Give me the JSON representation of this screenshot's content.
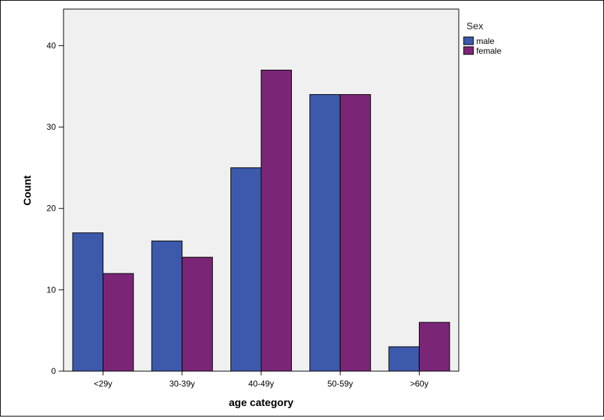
{
  "chart_data": {
    "type": "bar",
    "title": "",
    "xlabel": "age category",
    "ylabel": "Count",
    "categories": [
      "<29y",
      "30-39y",
      "40-49y",
      "50-59y",
      ">60y"
    ],
    "series": [
      {
        "name": "male",
        "values": [
          17,
          16,
          25,
          34,
          3
        ],
        "color": "#3d59ab"
      },
      {
        "name": "female",
        "values": [
          12,
          14,
          37,
          34,
          6
        ],
        "color": "#7b2577"
      }
    ],
    "ylim": [
      0,
      44.5
    ],
    "yticks": [
      "0",
      "10",
      "20",
      "30",
      "40"
    ],
    "grid": false,
    "legend": {
      "title": "Sex",
      "placement": "top-right, outside plot"
    },
    "plot_background": "#f0f0f0"
  }
}
